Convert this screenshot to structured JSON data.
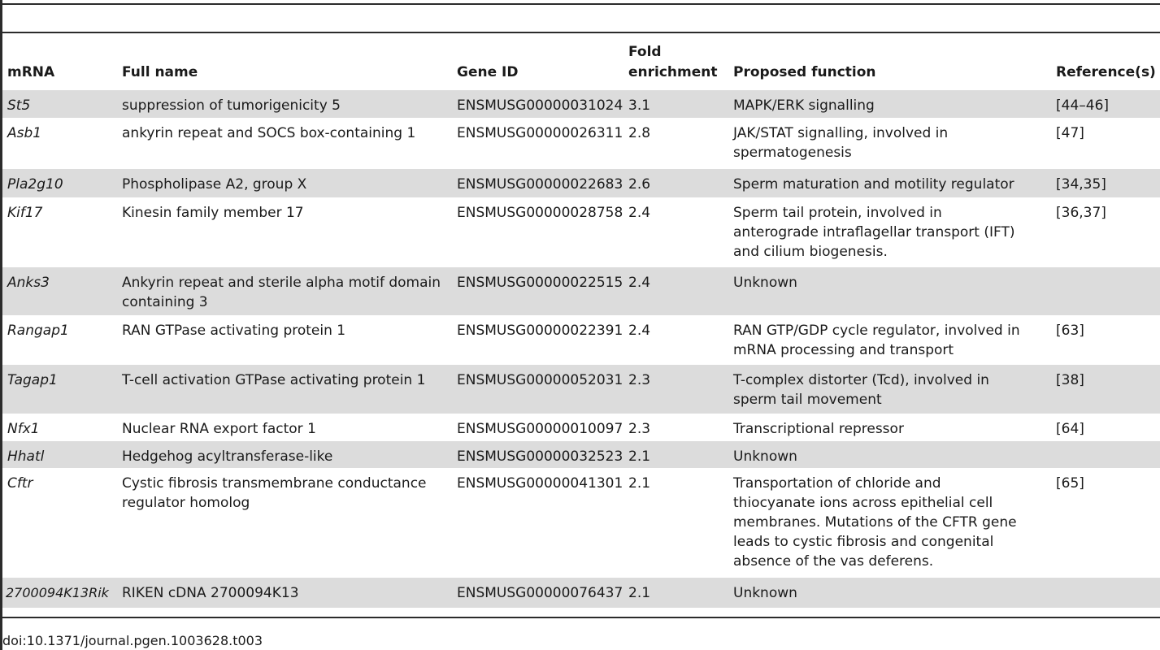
{
  "table": {
    "headers": {
      "mrna": "mRNA",
      "full_name": "Full name",
      "gene_id": "Gene ID",
      "fold_line1": "Fold",
      "fold_line2": "enrichment",
      "function": "Proposed function",
      "references": "Reference(s)"
    },
    "rows": [
      {
        "mrna": "St5",
        "full_name": "suppression of tumorigenicity 5",
        "gene_id": "ENSMUSG00000031024",
        "fold": "3.1",
        "function": "MAPK/ERK signalling",
        "refs": "[44–46]"
      },
      {
        "mrna": "Asb1",
        "full_name": "ankyrin repeat and SOCS box-containing 1",
        "gene_id": "ENSMUSG00000026311",
        "fold": "2.8",
        "function": "JAK/STAT signalling, involved in spermatogenesis",
        "refs": "[47]"
      },
      {
        "mrna": "Pla2g10",
        "full_name": "Phospholipase A2, group X",
        "gene_id": "ENSMUSG00000022683",
        "fold": "2.6",
        "function": "Sperm maturation and motility regulator",
        "refs": "[34,35]"
      },
      {
        "mrna": "Kif17",
        "full_name": "Kinesin family member 17",
        "gene_id": "ENSMUSG00000028758",
        "fold": "2.4",
        "function": "Sperm tail protein, involved in anterograde intraflagellar transport (IFT) and cilium biogenesis.",
        "refs": "[36,37]"
      },
      {
        "mrna": "Anks3",
        "full_name": "Ankyrin repeat and sterile alpha motif domain containing 3",
        "gene_id": "ENSMUSG00000022515",
        "fold": "2.4",
        "function": "Unknown",
        "refs": ""
      },
      {
        "mrna": "Rangap1",
        "full_name": "RAN GTPase activating protein 1",
        "gene_id": "ENSMUSG00000022391",
        "fold": "2.4",
        "function": "RAN GTP/GDP cycle regulator, involved in mRNA processing and transport",
        "refs": "[63]"
      },
      {
        "mrna": "Tagap1",
        "full_name": "T-cell activation GTPase activating protein 1",
        "gene_id": "ENSMUSG00000052031",
        "fold": "2.3",
        "function": "T-complex distorter (Tcd), involved in sperm tail movement",
        "refs": "[38]"
      },
      {
        "mrna": "Nfx1",
        "full_name": "Nuclear RNA export factor 1",
        "gene_id": "ENSMUSG00000010097",
        "fold": "2.3",
        "function": "Transcriptional repressor",
        "refs": "[64]"
      },
      {
        "mrna": "Hhatl",
        "full_name": "Hedgehog acyltransferase-like",
        "gene_id": "ENSMUSG00000032523",
        "fold": "2.1",
        "function": "Unknown",
        "refs": ""
      },
      {
        "mrna": "Cftr",
        "full_name": "Cystic fibrosis transmembrane conductance regulator homolog",
        "gene_id": "ENSMUSG00000041301",
        "fold": "2.1",
        "function": "Transportation of chloride and thiocyanate ions across epithelial cell membranes. Mutations of the CFTR gene leads to cystic fibrosis and congenital absence of the vas deferens.",
        "refs": "[65]"
      },
      {
        "mrna": "2700094K13Rik",
        "full_name": "RIKEN cDNA 2700094K13",
        "gene_id": "ENSMUSG00000076437",
        "fold": "2.1",
        "function": "Unknown",
        "refs": ""
      }
    ]
  },
  "footer": {
    "doi": "doi:10.1371/journal.pgen.1003628.t003"
  }
}
